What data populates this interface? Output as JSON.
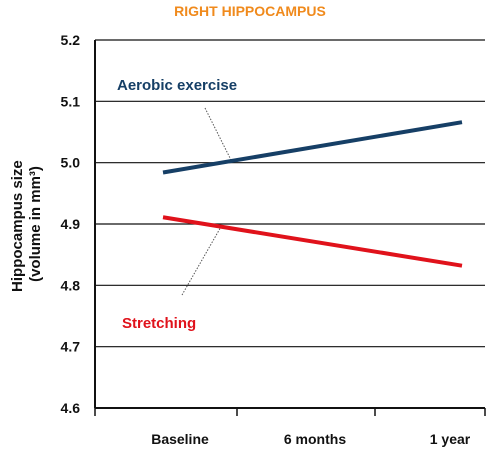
{
  "chart_data": {
    "type": "line",
    "title": "RIGHT HIPPOCAMPUS",
    "xlabel": "",
    "ylabel": "Hippocampus size (volume in mm³)",
    "ylabel_lines": [
      "Hippocampus size",
      "(volume in mm³)"
    ],
    "categories": [
      "Baseline",
      "6 months",
      "1 year"
    ],
    "ylim": [
      4.6,
      5.2
    ],
    "yticks": [
      "5.2",
      "5.1",
      "5.0",
      "4.9",
      "4.8",
      "4.7",
      "4.6"
    ],
    "grid": true,
    "series": [
      {
        "name": "Aerobic exercise",
        "color": "#163f66",
        "values": [
          4.984,
          null,
          5.066
        ]
      },
      {
        "name": "Stretching",
        "color": "#e0121b",
        "values": [
          4.911,
          null,
          4.832
        ]
      }
    ]
  }
}
